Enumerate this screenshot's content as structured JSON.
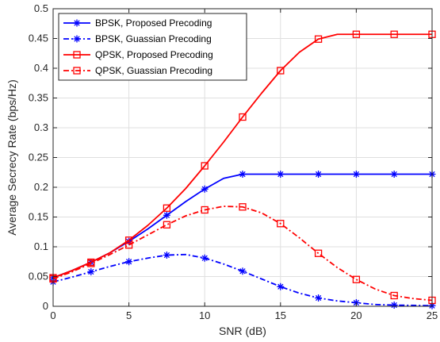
{
  "chart_data": {
    "type": "line",
    "title": "",
    "xlabel": "SNR (dB)",
    "ylabel": "Average Secrecy Rate (bps/Hz)",
    "xlim": [
      0,
      25
    ],
    "ylim": [
      0,
      0.5
    ],
    "xticks": [
      0,
      5,
      10,
      15,
      20,
      25
    ],
    "yticks": [
      0,
      0.05,
      0.1,
      0.15,
      0.2,
      0.25,
      0.3,
      0.35,
      0.4,
      0.45,
      0.5
    ],
    "grid": true,
    "legend_position": "top-left",
    "series": [
      {
        "name": "BPSK, Proposed Precoding",
        "color": "#0000ff",
        "line": "solid",
        "marker": "asterisk",
        "x": [
          0,
          2.5,
          5,
          7.5,
          10,
          12.5,
          15,
          17.5,
          20,
          22.5,
          25
        ],
        "y": [
          0.048,
          0.074,
          0.109,
          0.153,
          0.197,
          0.222,
          0.222,
          0.222,
          0.222,
          0.222,
          0.222
        ],
        "curve": [
          [
            0,
            0.048
          ],
          [
            1.25,
            0.06
          ],
          [
            2.5,
            0.074
          ],
          [
            3.75,
            0.09
          ],
          [
            5,
            0.109
          ],
          [
            6.25,
            0.13
          ],
          [
            7.5,
            0.153
          ],
          [
            8.75,
            0.176
          ],
          [
            10,
            0.197
          ],
          [
            11.25,
            0.215
          ],
          [
            12.5,
            0.222
          ],
          [
            15,
            0.222
          ],
          [
            17.5,
            0.222
          ],
          [
            20,
            0.222
          ],
          [
            22.5,
            0.222
          ],
          [
            25,
            0.222
          ]
        ]
      },
      {
        "name": "BPSK, Guassian Precoding",
        "color": "#0000ff",
        "line": "dashdot",
        "marker": "asterisk",
        "x": [
          0,
          2.5,
          5,
          7.5,
          10,
          12.5,
          15,
          17.5,
          20,
          22.5,
          25
        ],
        "y": [
          0.041,
          0.058,
          0.075,
          0.086,
          0.081,
          0.059,
          0.033,
          0.014,
          0.006,
          0.002,
          0.001
        ],
        "curve": [
          [
            0,
            0.041
          ],
          [
            1.25,
            0.049
          ],
          [
            2.5,
            0.058
          ],
          [
            3.75,
            0.067
          ],
          [
            5,
            0.075
          ],
          [
            6.25,
            0.081
          ],
          [
            7.5,
            0.086
          ],
          [
            8.75,
            0.087
          ],
          [
            10,
            0.081
          ],
          [
            11.25,
            0.071
          ],
          [
            12.5,
            0.059
          ],
          [
            13.75,
            0.046
          ],
          [
            15,
            0.033
          ],
          [
            16.25,
            0.022
          ],
          [
            17.5,
            0.014
          ],
          [
            18.75,
            0.009
          ],
          [
            20,
            0.006
          ],
          [
            21.25,
            0.003
          ],
          [
            22.5,
            0.002
          ],
          [
            25,
            0.001
          ]
        ]
      },
      {
        "name": "QPSK, Proposed Precoding",
        "color": "#ff0000",
        "line": "solid",
        "marker": "square",
        "x": [
          0,
          2.5,
          5,
          7.5,
          10,
          12.5,
          15,
          17.5,
          20,
          22.5,
          25
        ],
        "y": [
          0.048,
          0.074,
          0.111,
          0.165,
          0.236,
          0.318,
          0.396,
          0.449,
          0.457,
          0.457,
          0.457
        ],
        "curve": [
          [
            0,
            0.048
          ],
          [
            1.25,
            0.06
          ],
          [
            2.5,
            0.074
          ],
          [
            3.75,
            0.09
          ],
          [
            5,
            0.111
          ],
          [
            6.25,
            0.136
          ],
          [
            7.5,
            0.165
          ],
          [
            8.75,
            0.198
          ],
          [
            10,
            0.236
          ],
          [
            11.25,
            0.276
          ],
          [
            12.5,
            0.318
          ],
          [
            13.75,
            0.358
          ],
          [
            15,
            0.396
          ],
          [
            16.25,
            0.427
          ],
          [
            17.5,
            0.449
          ],
          [
            18.75,
            0.457
          ],
          [
            20,
            0.457
          ],
          [
            22.5,
            0.457
          ],
          [
            25,
            0.457
          ]
        ]
      },
      {
        "name": "QPSK, Guassian Precoding",
        "color": "#ff0000",
        "line": "dashdot",
        "marker": "square",
        "x": [
          0,
          2.5,
          5,
          7.5,
          10,
          12.5,
          15,
          17.5,
          20,
          22.5,
          25
        ],
        "y": [
          0.046,
          0.072,
          0.103,
          0.137,
          0.162,
          0.167,
          0.139,
          0.089,
          0.045,
          0.018,
          0.01
        ],
        "curve": [
          [
            0,
            0.046
          ],
          [
            1.25,
            0.058
          ],
          [
            2.5,
            0.072
          ],
          [
            3.75,
            0.087
          ],
          [
            5,
            0.103
          ],
          [
            6.25,
            0.12
          ],
          [
            7.5,
            0.137
          ],
          [
            8.75,
            0.152
          ],
          [
            10,
            0.162
          ],
          [
            11.25,
            0.168
          ],
          [
            12.5,
            0.167
          ],
          [
            13.75,
            0.157
          ],
          [
            15,
            0.139
          ],
          [
            16.25,
            0.115
          ],
          [
            17.5,
            0.089
          ],
          [
            18.75,
            0.065
          ],
          [
            20,
            0.045
          ],
          [
            21.25,
            0.029
          ],
          [
            22.5,
            0.018
          ],
          [
            23.75,
            0.013
          ],
          [
            25,
            0.01
          ]
        ]
      }
    ]
  }
}
